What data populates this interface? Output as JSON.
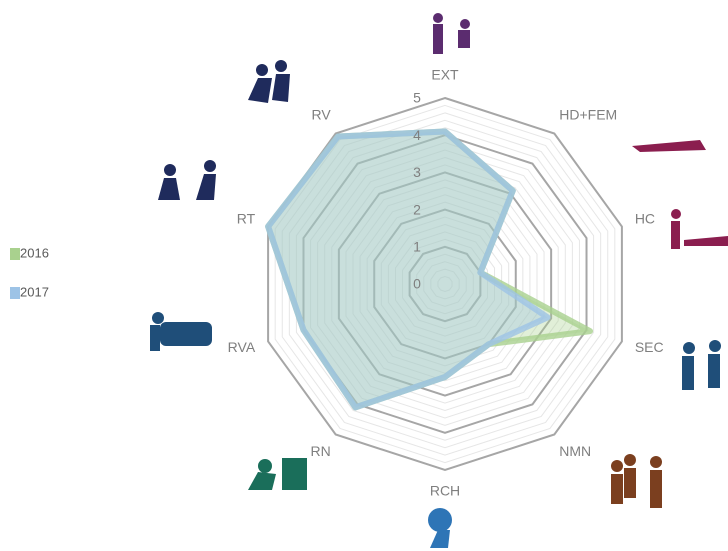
{
  "chart_data": {
    "type": "radar",
    "categories": [
      "EXT",
      "HD+FEM",
      "HC",
      "SEC",
      "NMN",
      "RCH",
      "RN",
      "RVA",
      "RT",
      "RV"
    ],
    "series": [
      {
        "name": "2016",
        "color": "#a9d18e",
        "values": [
          4.1,
          3.1,
          1.0,
          4.1,
          2.0,
          2.5,
          4.1,
          4.0,
          5,
          4.9
        ]
      },
      {
        "name": "2017",
        "color": "#9dc3e6",
        "values": [
          4.1,
          3.1,
          1.0,
          2.9,
          2.0,
          2.5,
          4.1,
          4.0,
          5,
          4.9
        ]
      }
    ],
    "ylim": [
      0,
      5
    ],
    "yticks": [
      0,
      1,
      2,
      3,
      4,
      5
    ],
    "grid": true,
    "legend": "left"
  }
}
